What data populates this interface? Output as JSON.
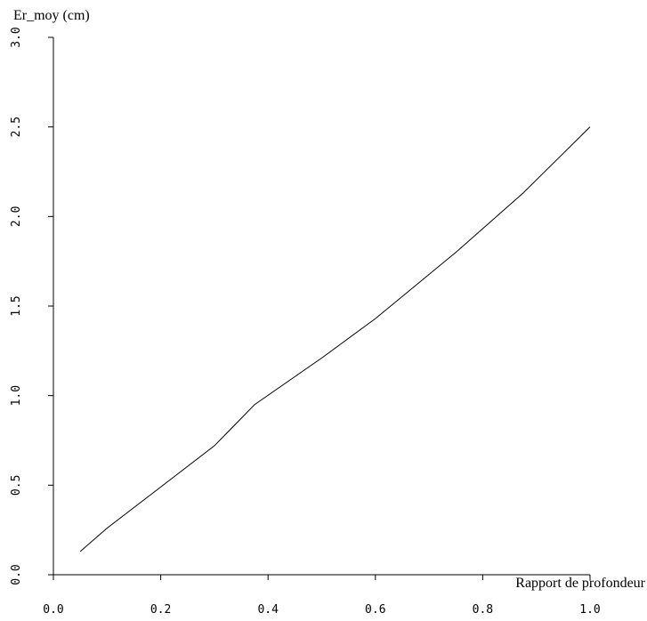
{
  "chart_data": {
    "type": "line",
    "title": "",
    "xlabel": "Rapport de profondeur",
    "ylabel": "Er_moy (cm)",
    "xlim": [
      0.0,
      1.0
    ],
    "ylim": [
      0.0,
      3.0
    ],
    "xticks": [
      "0.0",
      "0.2",
      "0.4",
      "0.6",
      "0.8",
      "1.0"
    ],
    "yticks": [
      "0.0",
      "0.5",
      "1.0",
      "1.5",
      "2.0",
      "2.5",
      "3.0"
    ],
    "grid": false,
    "legend": "none",
    "series": [
      {
        "x": [
          0.05,
          0.1,
          0.2,
          0.3,
          0.375,
          0.5,
          0.6,
          0.75,
          0.875,
          1.0
        ],
        "y": [
          0.13,
          0.26,
          0.49,
          0.72,
          0.95,
          1.21,
          1.43,
          1.8,
          2.13,
          2.5
        ]
      }
    ],
    "colors": {
      "line": "#000000",
      "axis": "#000000"
    }
  }
}
